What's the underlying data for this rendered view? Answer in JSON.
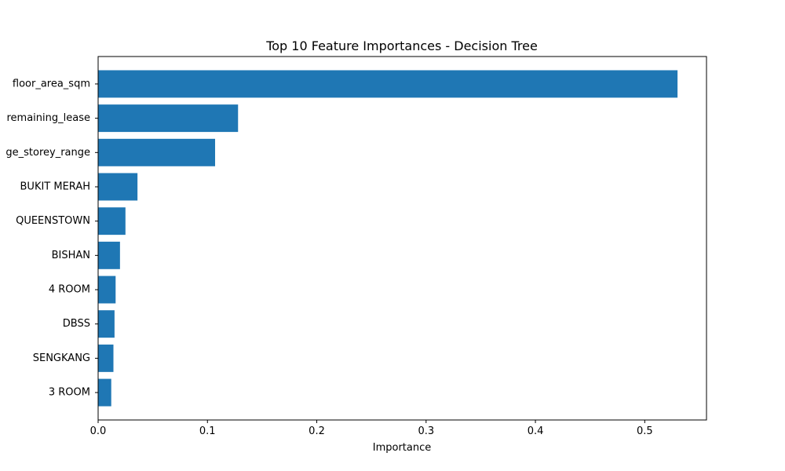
{
  "chart_data": {
    "type": "bar",
    "orientation": "horizontal",
    "title": "Top 10 Feature Importances - Decision Tree",
    "xlabel": "Importance",
    "ylabel": "",
    "categories": [
      "floor_area_sqm",
      "remaining_lease",
      "ge_storey_range",
      "BUKIT MERAH",
      "QUEENSTOWN",
      "BISHAN",
      "4 ROOM",
      "DBSS",
      "SENGKANG",
      "3 ROOM"
    ],
    "values": [
      0.53,
      0.128,
      0.107,
      0.036,
      0.025,
      0.02,
      0.016,
      0.015,
      0.014,
      0.012
    ],
    "xlim": [
      0,
      0.5565
    ],
    "xticks": [
      0,
      0.1,
      0.2,
      0.3,
      0.4,
      0.5
    ],
    "xtick_labels": [
      "0.0",
      "0.1",
      "0.2",
      "0.3",
      "0.4",
      "0.5"
    ],
    "grid": false,
    "bar_color": "#1f77b4"
  }
}
